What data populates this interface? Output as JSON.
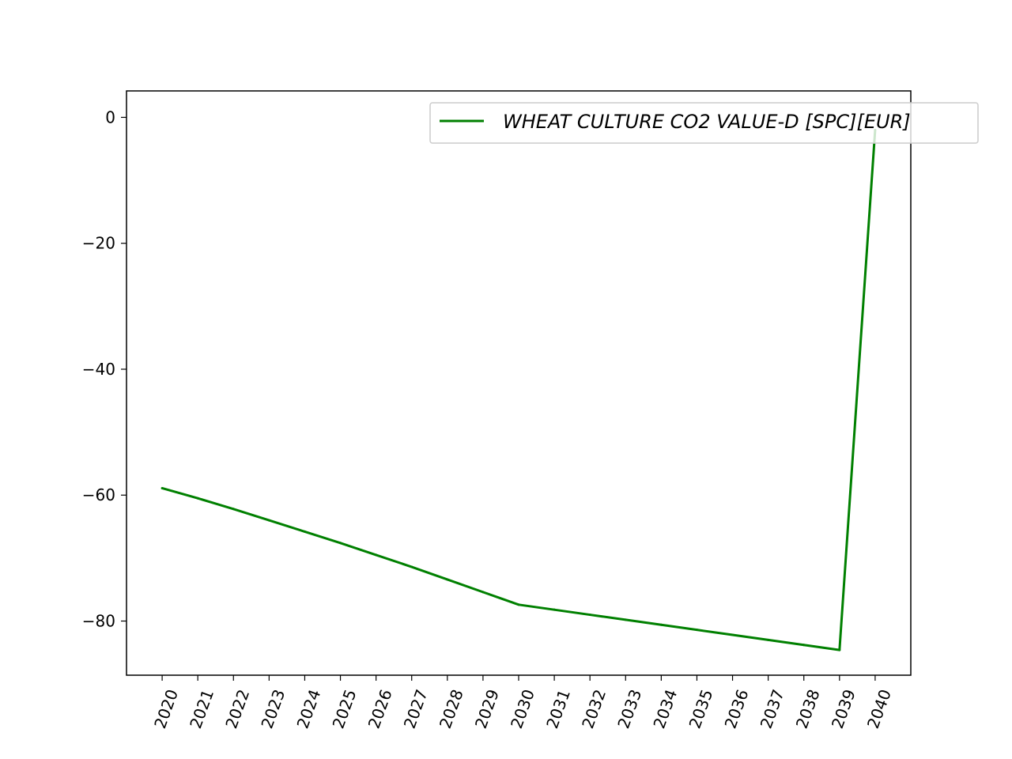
{
  "chart_data": {
    "type": "line",
    "title": "",
    "xlabel": "",
    "ylabel": "",
    "x": [
      2020,
      2021,
      2022,
      2023,
      2024,
      2025,
      2026,
      2027,
      2028,
      2029,
      2030,
      2031,
      2032,
      2033,
      2034,
      2035,
      2036,
      2037,
      2038,
      2039,
      2040
    ],
    "xticks": [
      "2020",
      "2021",
      "2022",
      "2023",
      "2024",
      "2025",
      "2026",
      "2027",
      "2028",
      "2029",
      "2030",
      "2031",
      "2032",
      "2033",
      "2034",
      "2035",
      "2036",
      "2037",
      "2038",
      "2039",
      "2040"
    ],
    "xlim": [
      2019,
      2041
    ],
    "ylim": [
      -88.6,
      4.2
    ],
    "yticks": [
      0,
      -20,
      -40,
      -60,
      -80
    ],
    "ytick_labels": [
      "0",
      "−20",
      "−40",
      "−60",
      "−80"
    ],
    "grid": false,
    "legend_position": "top-right",
    "series": [
      {
        "name": "WHEAT CULTURE CO2 VALUE-D [SPC][EUR]",
        "color": "#008000",
        "values": [
          -58.9,
          -60.5,
          -62.2,
          -64.0,
          -65.8,
          -67.6,
          -69.5,
          -71.4,
          -73.4,
          -75.4,
          -77.4,
          -78.2,
          -79.0,
          -79.8,
          -80.6,
          -81.4,
          -82.2,
          -83.0,
          -83.8,
          -84.6,
          -2.0
        ]
      }
    ]
  }
}
